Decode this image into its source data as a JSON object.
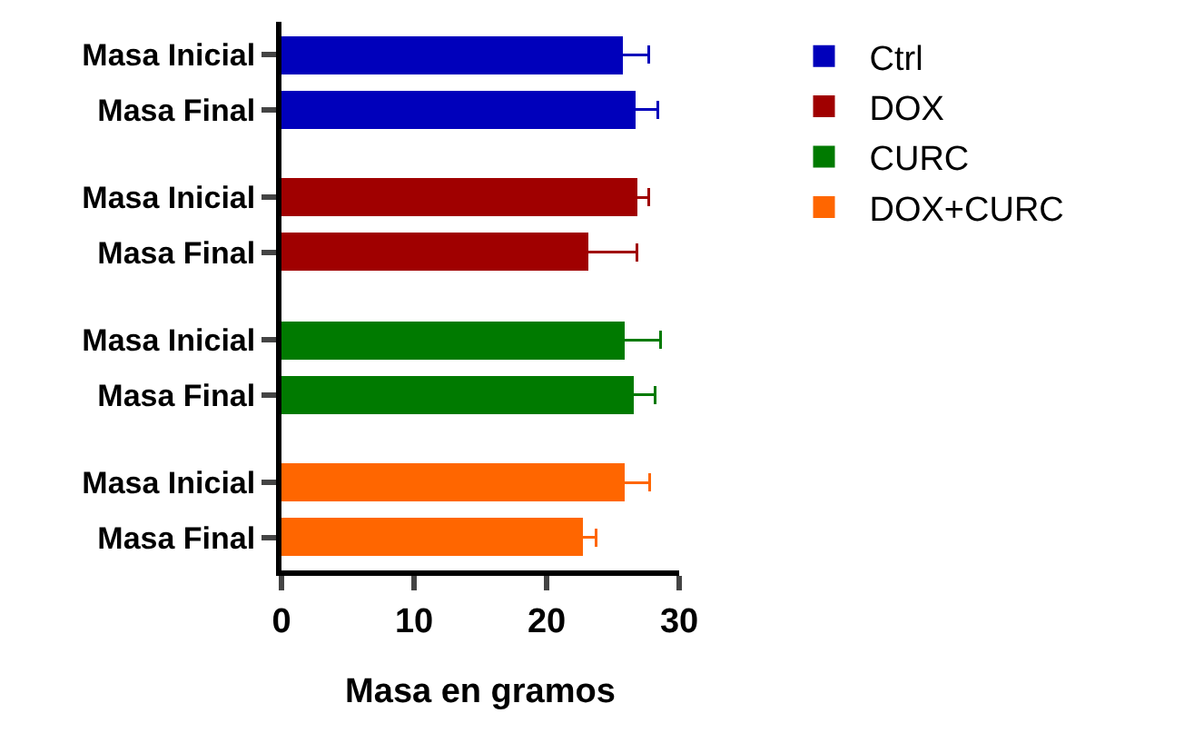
{
  "chart_data": {
    "type": "bar",
    "orientation": "horizontal",
    "xlabel": "Masa en gramos",
    "categories": [
      "Masa Inicial",
      "Masa Final",
      "Masa Inicial",
      "Masa Final",
      "Masa Inicial",
      "Masa Final",
      "Masa Inicial",
      "Masa Final"
    ],
    "series": [
      {
        "name": "Ctrl",
        "color": "#0000bb",
        "values": [
          25.8,
          26.7,
          null,
          null,
          null,
          null,
          null,
          null
        ],
        "errors": [
          1.9,
          1.7,
          null,
          null,
          null,
          null,
          null,
          null
        ]
      },
      {
        "name": "DOX",
        "color": "#a00000",
        "values": [
          null,
          null,
          26.8,
          23.2,
          null,
          null,
          null,
          null
        ],
        "errors": [
          null,
          null,
          0.9,
          3.6,
          null,
          null,
          null,
          null
        ]
      },
      {
        "name": "CURC",
        "color": "#007a00",
        "values": [
          null,
          null,
          null,
          null,
          25.9,
          26.6,
          null,
          null
        ],
        "errors": [
          null,
          null,
          null,
          null,
          2.7,
          1.6,
          null,
          null
        ]
      },
      {
        "name": "DOX+CURC",
        "color": "#ff6600",
        "values": [
          null,
          null,
          null,
          null,
          null,
          null,
          25.9,
          22.8
        ],
        "errors": [
          null,
          null,
          null,
          null,
          null,
          null,
          1.9,
          0.9
        ]
      }
    ],
    "xlim": [
      0,
      30
    ],
    "xticks": [
      0,
      10,
      20,
      30
    ],
    "grid": false,
    "legend": "top right"
  }
}
